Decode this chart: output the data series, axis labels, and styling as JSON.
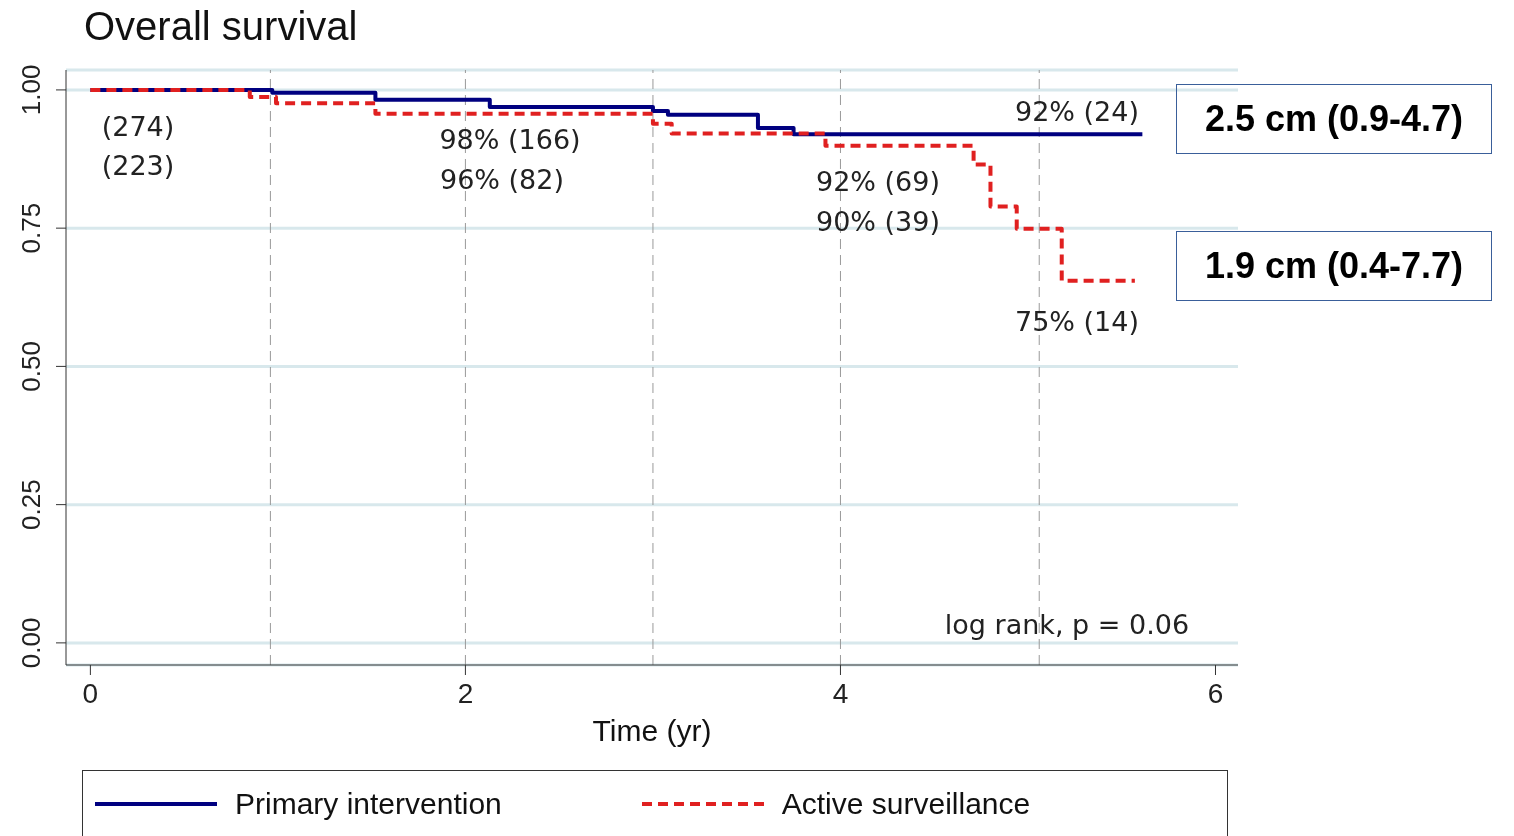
{
  "chart_data": {
    "type": "step",
    "title": "Overall survival",
    "xlabel": "Time (yr)",
    "xlim": [
      -0.13,
      6.12
    ],
    "xticks": [
      0,
      2,
      4,
      6
    ],
    "ylim": [
      -0.04,
      1.036
    ],
    "yticks": [
      {
        "value": 0,
        "label": "0.00"
      },
      {
        "value": 0.25,
        "label": "0.25"
      },
      {
        "value": 0.5,
        "label": "0.50"
      },
      {
        "value": 0.75,
        "label": "0.75"
      },
      {
        "value": 1,
        "label": "1.00"
      }
    ],
    "grid": "y",
    "legend": "bottom",
    "marker": "none",
    "series": [
      {
        "name": "Primary intervention",
        "color": "#000080",
        "line_style": "solid",
        "x": [
          0,
          0.97,
          1.52,
          2.13,
          3.0,
          3.08,
          3.56,
          3.75,
          5.61
        ],
        "values": [
          1,
          0.995,
          0.982,
          0.969,
          0.962,
          0.955,
          0.931,
          0.92,
          0.92
        ]
      },
      {
        "name": "Active surveillance",
        "color": "#e02020",
        "line_style": "dashed",
        "x": [
          0,
          0.85,
          0.99,
          1.52,
          3.0,
          3.1,
          3.92,
          4.71,
          4.8,
          4.94,
          5.18,
          5.57
        ],
        "values": [
          1,
          0.987,
          0.976,
          0.957,
          0.939,
          0.921,
          0.899,
          0.865,
          0.789,
          0.749,
          0.655,
          0.655
        ]
      }
    ],
    "ref_lines": [
      {
        "axis": "x",
        "value": 0.96,
        "color": "#999999",
        "line_style": "dashed"
      },
      {
        "axis": "x",
        "value": 2,
        "color": "#999999",
        "line_style": "dashed"
      },
      {
        "axis": "x",
        "value": 3,
        "color": "#999999",
        "line_style": "dashed"
      },
      {
        "axis": "x",
        "value": 4,
        "color": "#999999",
        "line_style": "dashed"
      },
      {
        "axis": "x",
        "value": 5.06,
        "color": "#999999",
        "line_style": "dashed"
      }
    ],
    "annotations": [
      "(274)",
      "(223)",
      "98% (166)",
      "96% (82)",
      "92% (69)",
      "90% (39)",
      "92% (24)",
      "75% (14)",
      "log rank, p = 0.06",
      "2.5 cm (0.9-4.7)",
      "1.9 cm (0.4-7.7)"
    ]
  }
}
